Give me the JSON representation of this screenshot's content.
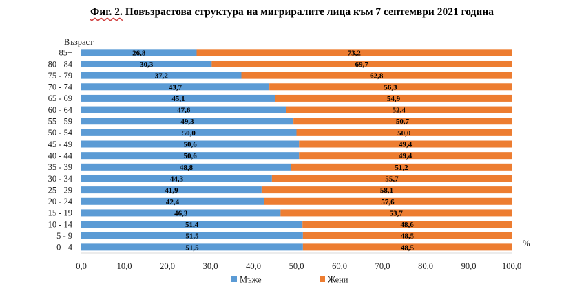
{
  "title_prefix": "Фиг. 2.",
  "title_rest": " Повъзрастова структура на мигриралите лица към 7 септември 2021 година",
  "chart_data": {
    "type": "bar",
    "orientation": "horizontal",
    "stacked": true,
    "ylabel": "Възраст",
    "xunit": "%",
    "xlim": [
      0,
      100
    ],
    "xticks": [
      "0,0",
      "10,0",
      "20,0",
      "30,0",
      "40,0",
      "50,0",
      "60,0",
      "70,0",
      "80,0",
      "90,0",
      "100,0"
    ],
    "grid": false,
    "legend": "bottom",
    "categories": [
      "85+",
      "80 - 84",
      "75 - 79",
      "70 - 74",
      "65 - 69",
      "60 - 64",
      "55 - 59",
      "50 - 54",
      "45 - 49",
      "40 - 44",
      "35 - 39",
      "30 - 34",
      "25 - 29",
      "20 - 24",
      "15 - 19",
      "10 - 14",
      "5 - 9",
      "0 - 4"
    ],
    "series": [
      {
        "name": "Мъже",
        "color": "#5b9bd5",
        "values": [
          26.8,
          30.3,
          37.2,
          43.7,
          45.1,
          47.6,
          49.3,
          50.0,
          50.6,
          50.6,
          48.8,
          44.3,
          41.9,
          42.4,
          46.3,
          51.4,
          51.5,
          51.5
        ],
        "labels": [
          "26,8",
          "30,3",
          "37,2",
          "43,7",
          "45,1",
          "47,6",
          "49,3",
          "50,0",
          "50,6",
          "50,6",
          "48,8",
          "44,3",
          "41,9",
          "42,4",
          "46,3",
          "51,4",
          "51,5",
          "51,5"
        ]
      },
      {
        "name": "Жени",
        "color": "#ed7d31",
        "values": [
          73.2,
          69.7,
          62.8,
          56.3,
          54.9,
          52.4,
          50.7,
          50.0,
          49.4,
          49.4,
          51.2,
          55.7,
          58.1,
          57.6,
          53.7,
          48.6,
          48.5,
          48.5
        ],
        "labels": [
          "73,2",
          "69,7",
          "62,8",
          "56,3",
          "54,9",
          "52,4",
          "50,7",
          "50,0",
          "49,4",
          "49,4",
          "51,2",
          "55,7",
          "58,1",
          "57,6",
          "53,7",
          "48,6",
          "48,5",
          "48,5"
        ]
      }
    ]
  }
}
